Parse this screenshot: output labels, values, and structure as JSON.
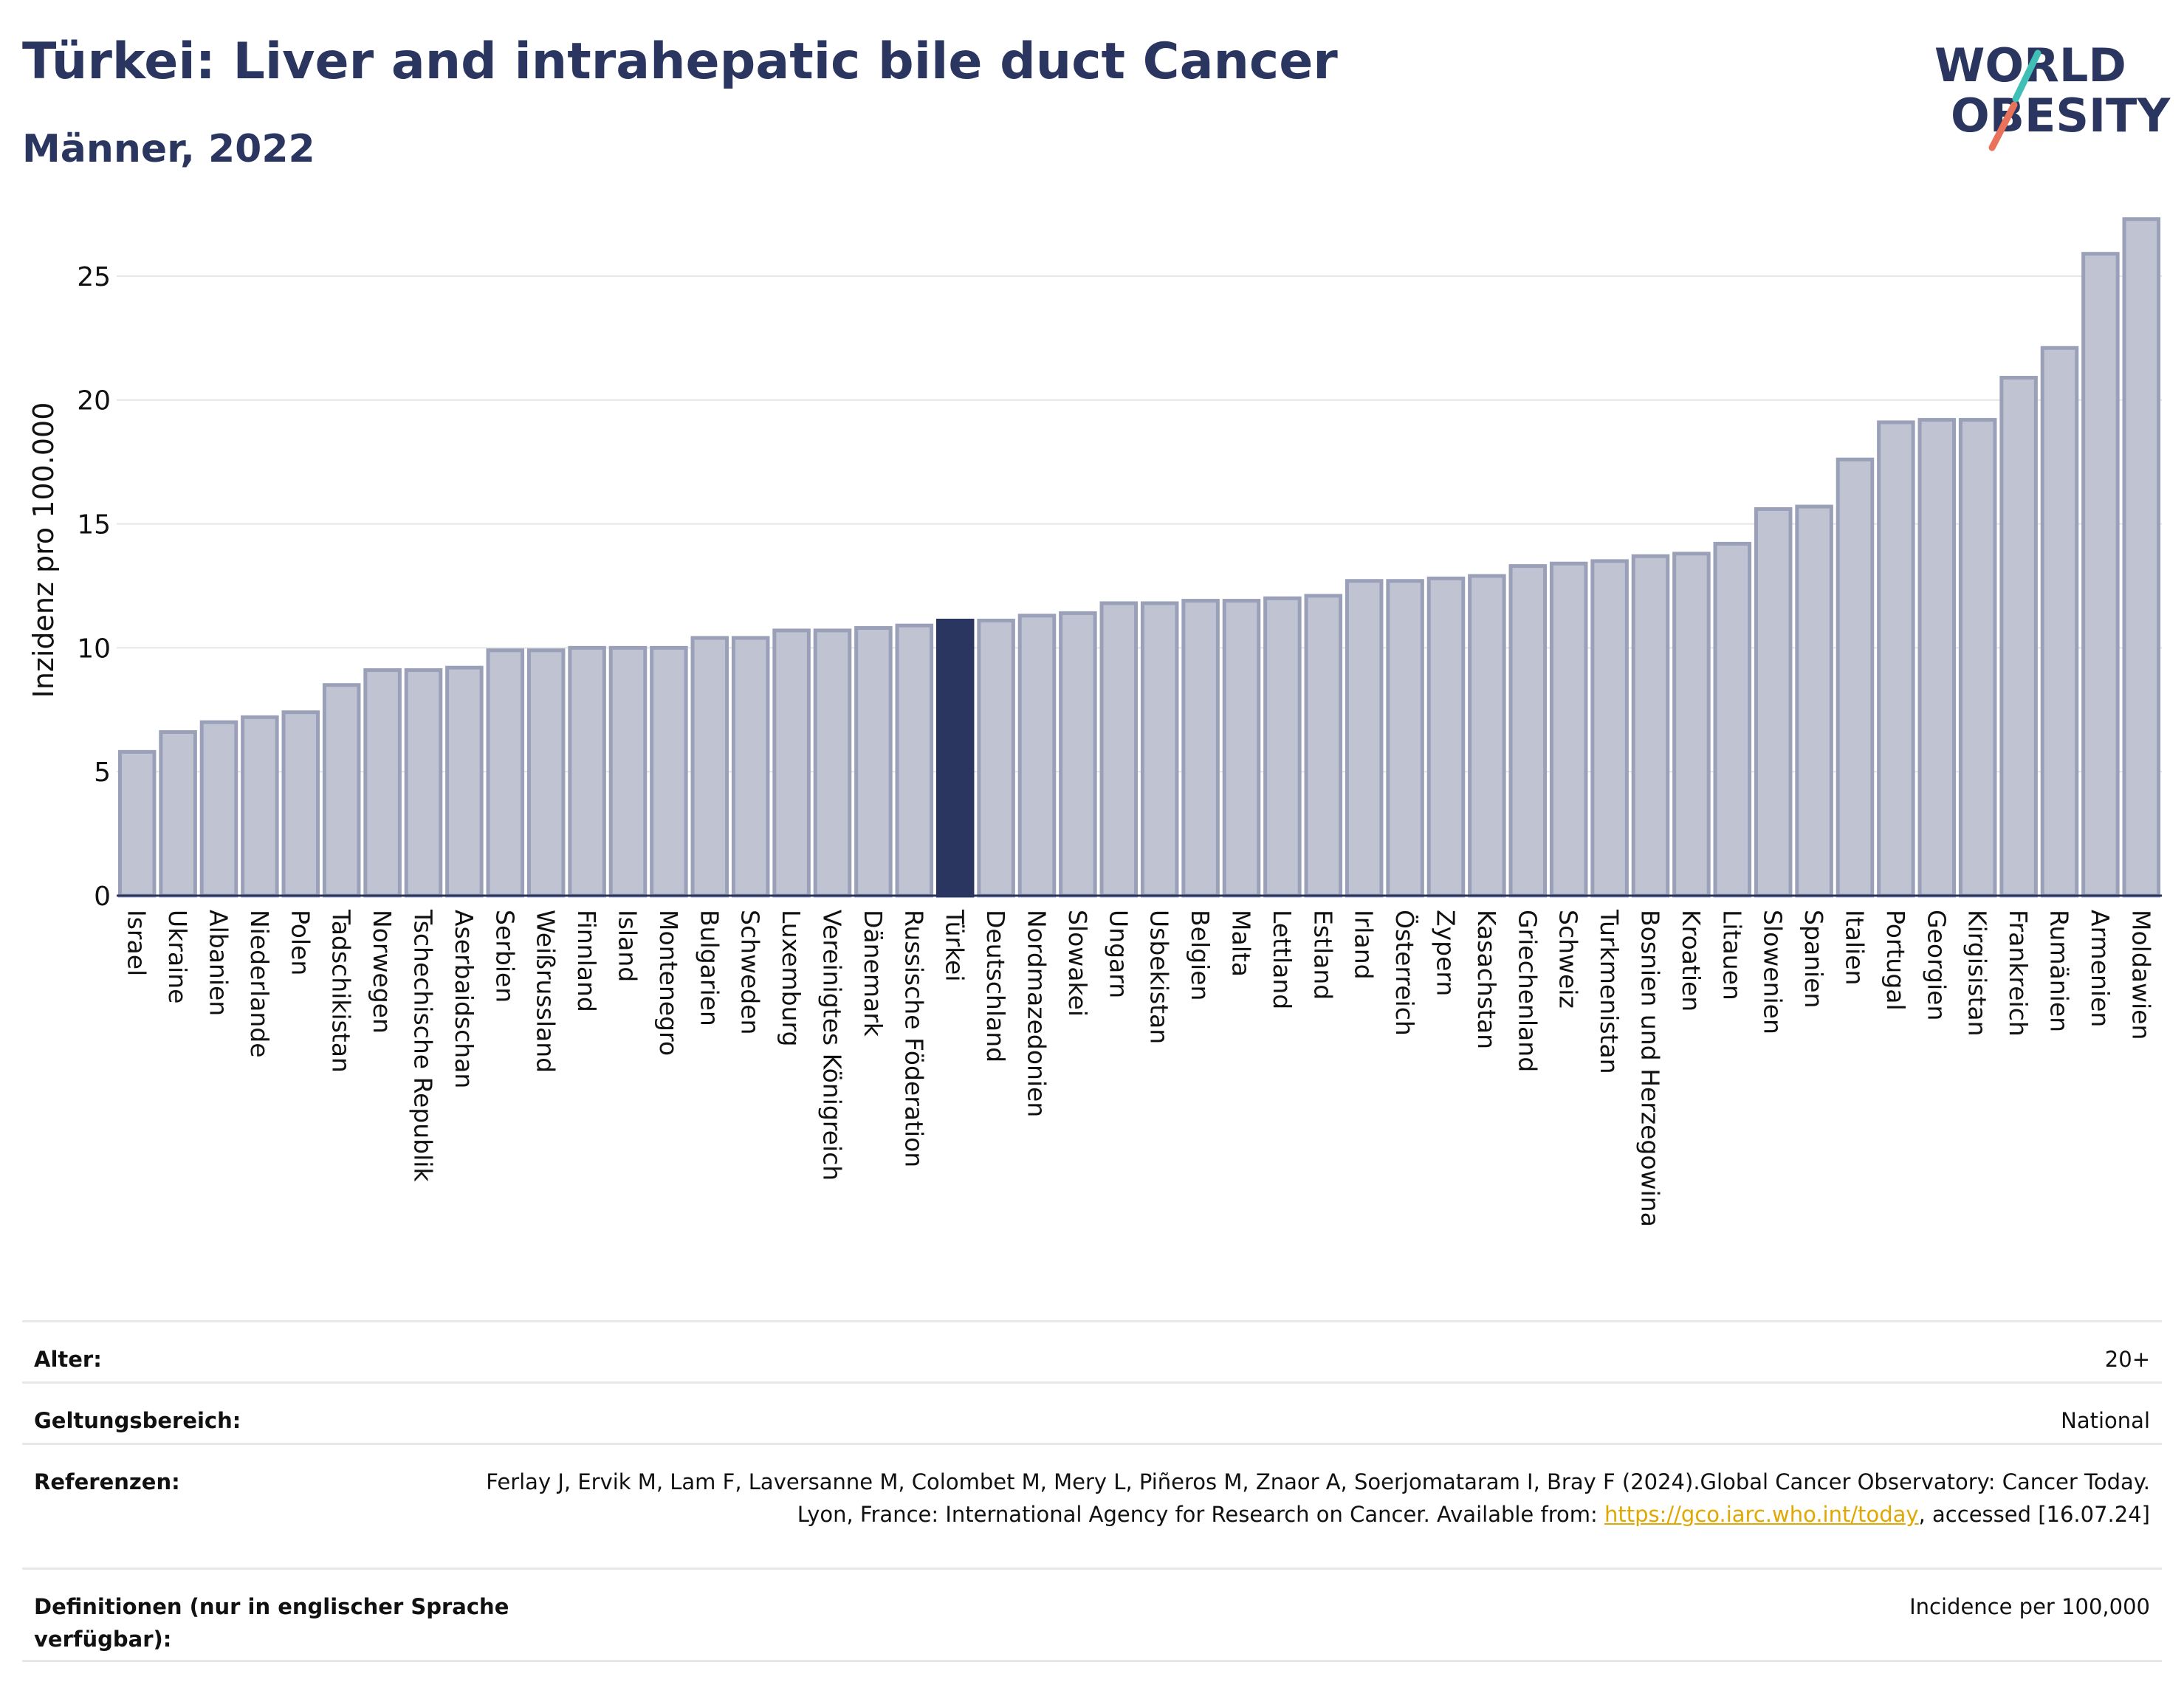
{
  "title": "Türkei: Liver and intrahepatic bile duct Cancer",
  "subtitle": "Männer, 2022",
  "logo": {
    "line1": "WORLD",
    "line2": "OBESITY"
  },
  "colors": {
    "bar": "#bfc3d2",
    "bar_stroke": "#9aa0b8",
    "highlight": "#2a3560",
    "text": "#2a3560"
  },
  "chart_data": {
    "type": "bar",
    "ylabel": "Inzidenz pro 100.000",
    "ylim": [
      0,
      27.5
    ],
    "yticks": [
      0,
      5,
      10,
      15,
      20,
      25
    ],
    "highlight": "Türkei",
    "categories": [
      "Israel",
      "Ukraine",
      "Albanien",
      "Niederlande",
      "Polen",
      "Tadschikistan",
      "Norwegen",
      "Tschechische Republik",
      "Aserbaidschan",
      "Serbien",
      "Weißrussland",
      "Finnland",
      "Island",
      "Montenegro",
      "Bulgarien",
      "Schweden",
      "Luxemburg",
      "Vereinigtes Königreich",
      "Dänemark",
      "Russische Föderation",
      "Türkei",
      "Deutschland",
      "Nordmazedonien",
      "Slowakei",
      "Ungarn",
      "Usbekistan",
      "Belgien",
      "Malta",
      "Lettland",
      "Estland",
      "Irland",
      "Österreich",
      "Zypern",
      "Kasachstan",
      "Griechenland",
      "Schweiz",
      "Turkmenistan",
      "Bosnien und Herzegowina",
      "Kroatien",
      "Litauen",
      "Slowenien",
      "Spanien",
      "Italien",
      "Portugal",
      "Georgien",
      "Kirgisistan",
      "Frankreich",
      "Rumänien",
      "Armenien",
      "Moldawien"
    ],
    "values": [
      5.8,
      6.6,
      7.0,
      7.2,
      7.4,
      8.5,
      9.1,
      9.1,
      9.2,
      9.9,
      9.9,
      10.0,
      10.0,
      10.0,
      10.4,
      10.4,
      10.7,
      10.7,
      10.8,
      10.9,
      11.1,
      11.1,
      11.3,
      11.4,
      11.8,
      11.8,
      11.9,
      11.9,
      12.0,
      12.1,
      12.7,
      12.7,
      12.8,
      12.9,
      13.3,
      13.4,
      13.5,
      13.7,
      13.8,
      14.2,
      15.6,
      15.7,
      17.6,
      19.1,
      19.2,
      19.2,
      20.9,
      22.1,
      25.9,
      27.3
    ]
  },
  "info": [
    {
      "label": "Alter:",
      "value": "20+"
    },
    {
      "label": "Geltungsbereich:",
      "value": "National"
    },
    {
      "label": "Referenzen:",
      "value_pre": "Ferlay J, Ervik M, Lam F, Laversanne M, Colombet M, Mery L, Piñeros M, Znaor A, Soerjomataram I, Bray F (2024).Global Cancer Observatory: Cancer Today. Lyon, France: International Agency for Research on Cancer. Available from: ",
      "link": "https://gco.iarc.who.int/today",
      "value_post": ", accessed [16.07.24]"
    },
    {
      "label": "Definitionen (nur in englischer Sprache verfügbar):",
      "value": "Incidence per 100,000"
    }
  ]
}
